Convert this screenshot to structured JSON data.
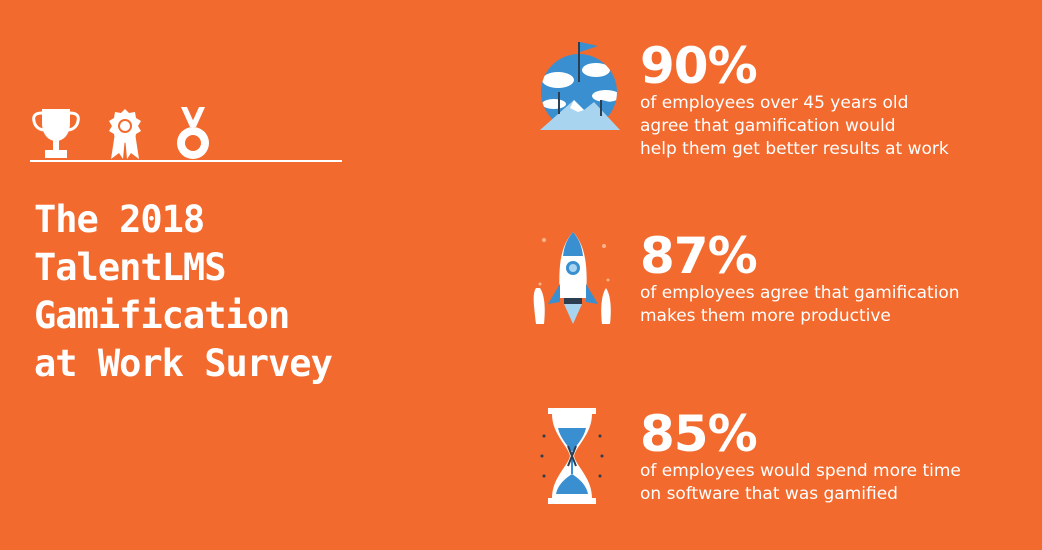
{
  "title": {
    "lines": [
      "The 2018",
      "TalentLMS",
      "Gamification",
      "at Work Survey"
    ]
  },
  "decor": {
    "icons": [
      "trophy-icon",
      "rosette-icon",
      "medal-icon"
    ],
    "color": "#FFFFFF"
  },
  "colors": {
    "background": "#F26A2E",
    "text": "#FFFFFF",
    "illustration_blue": "#3A8FD0",
    "illustration_light_blue": "#A8D4F0",
    "illustration_dark": "#2C3E50"
  },
  "stats": [
    {
      "percent": "90%",
      "icon": "mountain-flag-icon",
      "lines": [
        "of employees over 45 years old",
        "agree that gamification would",
        "help them get better results at work"
      ]
    },
    {
      "percent": "87%",
      "icon": "rocket-icon",
      "lines": [
        "of employees agree that gamification",
        "makes them more productive"
      ]
    },
    {
      "percent": "85%",
      "icon": "hourglass-icon",
      "lines": [
        "of employees would spend more time",
        "on software that was gamified"
      ]
    }
  ]
}
